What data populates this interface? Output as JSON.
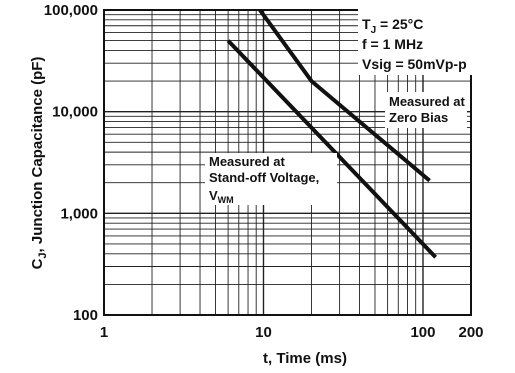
{
  "chart_data": {
    "type": "line",
    "xlabel": "t, Time (ms)",
    "ylabel": "C",
    "ylabel_sub": "J",
    "ylabel_rest": ", Junction Capacitance (pF)",
    "x_scale": "log",
    "y_scale": "log",
    "xlim": [
      1,
      200
    ],
    "ylim": [
      100,
      100000
    ],
    "grid": true,
    "x_ticks": [
      {
        "value": 1,
        "label": "1"
      },
      {
        "value": 10,
        "label": "10"
      },
      {
        "value": 100,
        "label": "100"
      },
      {
        "value": 200,
        "label": "200"
      }
    ],
    "y_ticks": [
      {
        "value": 100,
        "label": "100"
      },
      {
        "value": 1000,
        "label": "1,000"
      },
      {
        "value": 10000,
        "label": "10,000"
      },
      {
        "value": 100000,
        "label": "100,000"
      }
    ],
    "series": [
      {
        "name": "Measured at Zero Bias",
        "x": [
          9.5,
          20,
          110
        ],
        "y": [
          100000,
          20000,
          2100
        ]
      },
      {
        "name": "Measured at Stand-off Voltage, VWM",
        "x": [
          6,
          120
        ],
        "y": [
          50000,
          370
        ]
      }
    ],
    "conditions": {
      "tj_main": "T",
      "tj_sub": "J",
      "tj_value": " = 25°C",
      "freq": "f = 1 MHz",
      "vsig": "Vsig = 50mVp-p"
    },
    "annotations": {
      "zero_bias_line1": "Measured at",
      "zero_bias_line2": "Zero Bias",
      "standoff_line1": "Measured at",
      "standoff_line2": "Stand-off Voltage,",
      "standoff_line3_main": "V",
      "standoff_line3_sub": "WM"
    },
    "colors": {
      "grid": "#222222",
      "line": "#111111"
    }
  }
}
